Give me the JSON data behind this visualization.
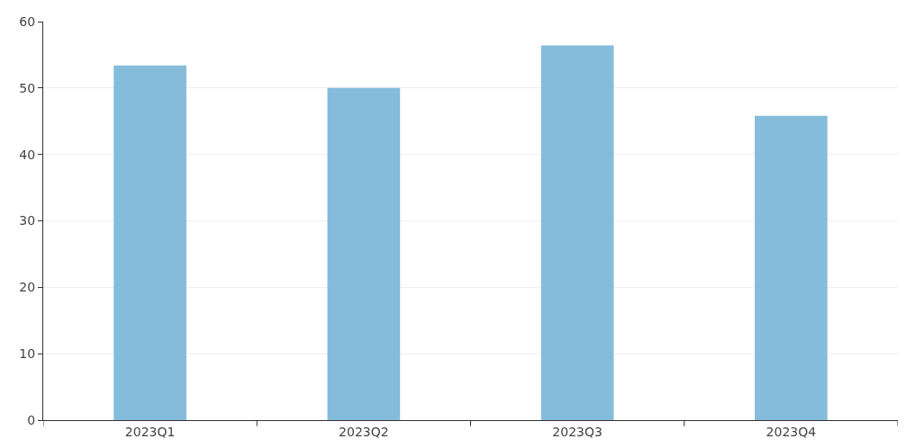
{
  "chart_data": {
    "type": "bar",
    "categories": [
      "2023Q1",
      "2023Q2",
      "2023Q3",
      "2023Q4"
    ],
    "values": [
      53.4,
      50.0,
      56.4,
      45.8
    ],
    "color": "#85bcdb",
    "ylim": [
      0,
      60
    ],
    "yticks": [
      0,
      10,
      20,
      30,
      40,
      50,
      60
    ],
    "grid": "y"
  }
}
